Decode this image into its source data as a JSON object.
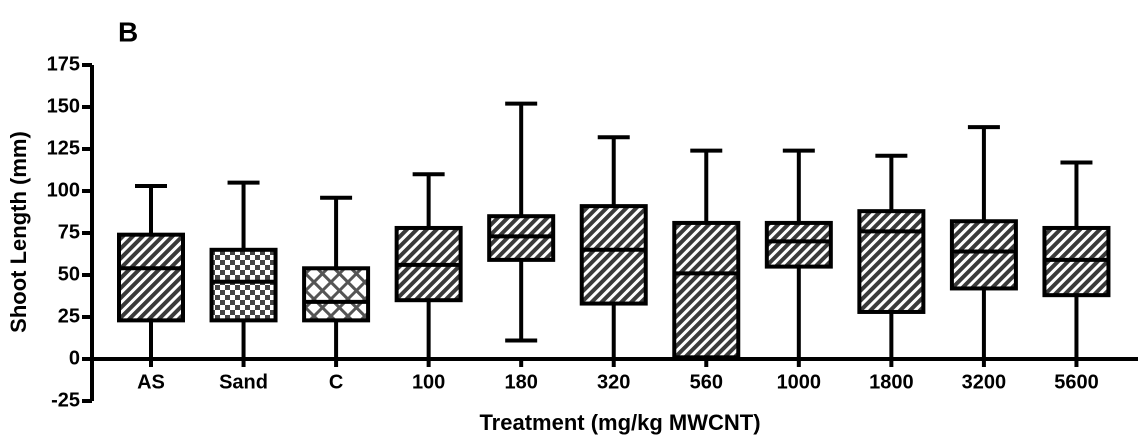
{
  "chart_data": {
    "type": "box",
    "panel_label": "B",
    "x_label": "Treatment (mg/kg MWCNT)",
    "y_label": "Shoot Length (mm)",
    "categories": [
      "AS",
      "Sand",
      "C",
      "100",
      "180",
      "320",
      "560",
      "1000",
      "1800",
      "3200",
      "5600"
    ],
    "fill_patterns": [
      "diagonal",
      "checker",
      "crosshatch",
      "diagonal",
      "diagonal",
      "diagonal",
      "diagonal",
      "diagonal",
      "diagonal",
      "diagonal",
      "diagonal"
    ],
    "boxes": [
      {
        "min": 0,
        "q1": 23,
        "median": 54,
        "q3": 74,
        "max": 103
      },
      {
        "min": 0,
        "q1": 23,
        "median": 46,
        "q3": 65,
        "max": 105
      },
      {
        "min": 0,
        "q1": 23,
        "median": 34,
        "q3": 54,
        "max": 96
      },
      {
        "min": 0,
        "q1": 35,
        "median": 56,
        "q3": 78,
        "max": 110
      },
      {
        "min": 11,
        "q1": 59,
        "median": 73,
        "q3": 85,
        "max": 152
      },
      {
        "min": 0,
        "q1": 33,
        "median": 65,
        "q3": 91,
        "max": 132
      },
      {
        "min": 0,
        "q1": 1,
        "median": 51,
        "q3": 81,
        "max": 124
      },
      {
        "min": 0,
        "q1": 55,
        "median": 70,
        "q3": 81,
        "max": 124
      },
      {
        "min": 0,
        "q1": 28,
        "median": 76,
        "q3": 88,
        "max": 121
      },
      {
        "min": 0,
        "q1": 42,
        "median": 64,
        "q3": 82,
        "max": 138
      },
      {
        "min": 0,
        "q1": 38,
        "median": 59,
        "q3": 78,
        "max": 117
      }
    ],
    "ylim": [
      -25,
      175
    ],
    "yticks": [
      -25,
      0,
      25,
      50,
      75,
      100,
      125,
      150,
      175
    ]
  }
}
